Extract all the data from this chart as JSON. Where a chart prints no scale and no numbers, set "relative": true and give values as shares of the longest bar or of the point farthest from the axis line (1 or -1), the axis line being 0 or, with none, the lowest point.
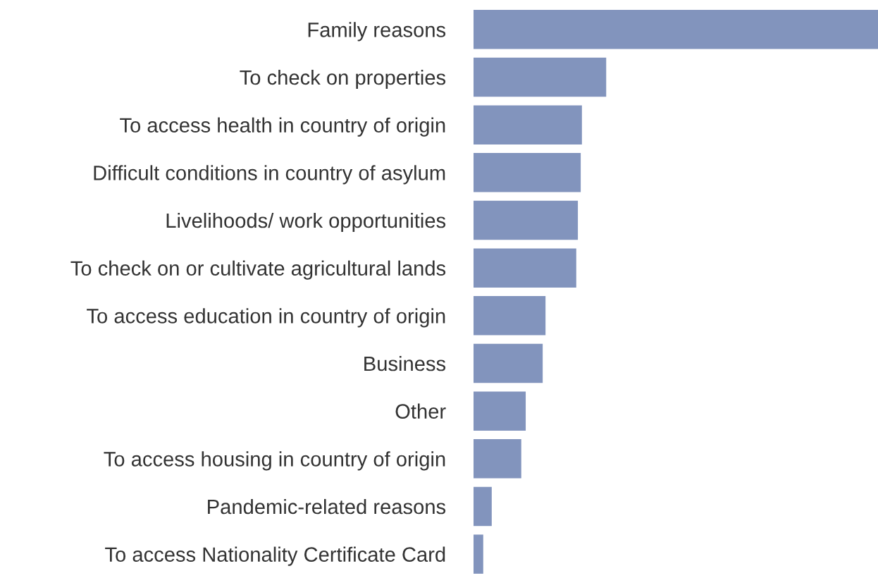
{
  "chart_data": {
    "type": "bar",
    "orientation": "horizontal",
    "relative": true,
    "color": "#8294bd",
    "grid": false,
    "legend": false,
    "categories": [
      "Family reasons",
      "To check on properties",
      "To access health in country of origin",
      "Difficult conditions in country of asylum",
      "Livelihoods/ work opportunities",
      "To check on or cultivate agricultural lands",
      "To access education in country of origin",
      "Business",
      "Other",
      "To access housing in country of origin",
      "Pandemic-related reasons",
      "To access Nationality Certificate Card"
    ],
    "values": [
      1,
      0.328,
      0.268,
      0.265,
      0.258,
      0.254,
      0.178,
      0.171,
      0.129,
      0.118,
      0.045,
      0.024
    ]
  }
}
